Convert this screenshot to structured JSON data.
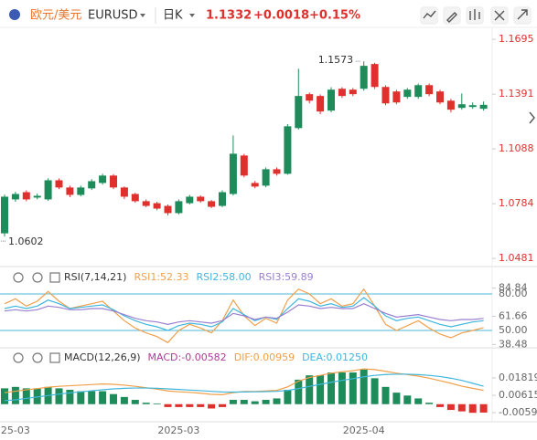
{
  "header": {
    "pair": "欧元/美元",
    "symbol": "EURUSD",
    "period": "日K",
    "price": "1.1332",
    "change": "+0.0018",
    "change_pct": "+0.15%"
  },
  "chart_data": [
    {
      "type": "candlestick",
      "up_color": "#1e8c5a",
      "down_color": "#e0302e",
      "open": [
        1.062,
        1.0808,
        1.0848,
        1.0818,
        1.0808,
        1.0914,
        1.0874,
        1.0833,
        1.0869,
        1.0899,
        1.094,
        1.0874,
        1.0838,
        1.0798,
        1.0787,
        1.0772,
        1.0732,
        1.0787,
        1.0823,
        1.0798,
        1.0772,
        1.0838,
        1.1051,
        1.0899,
        1.0884,
        1.0975,
        1.095,
        1.1203,
        1.1391,
        1.1381,
        1.13,
        1.1421,
        1.1416,
        1.1421,
        1.1558,
        1.1431,
        1.1406,
        1.1376,
        1.1376,
        1.1441,
        1.1406,
        1.1355,
        1.1315,
        1.132,
        1.131
      ],
      "high": [
        1.0835,
        1.085,
        1.0858,
        1.084,
        1.0925,
        1.0924,
        1.0884,
        1.0884,
        1.092,
        1.095,
        1.0948,
        1.088,
        1.0845,
        1.0808,
        1.0795,
        1.078,
        1.0808,
        1.0833,
        1.083,
        1.0805,
        1.0858,
        1.1162,
        1.106,
        1.091,
        1.0985,
        1.0985,
        1.1225,
        1.1532,
        1.14,
        1.139,
        1.143,
        1.143,
        1.1425,
        1.1573,
        1.1565,
        1.144,
        1.1415,
        1.1425,
        1.145,
        1.145,
        1.1415,
        1.1365,
        1.1395,
        1.1345,
        1.135
      ],
      "low": [
        1.0602,
        1.0795,
        1.0798,
        1.0808,
        1.08,
        1.0865,
        1.082,
        1.0825,
        1.086,
        1.089,
        1.0865,
        1.081,
        1.079,
        1.0765,
        1.0748,
        1.072,
        1.0725,
        1.078,
        1.079,
        1.076,
        1.0765,
        1.083,
        1.093,
        1.087,
        1.0875,
        1.094,
        1.0945,
        1.1195,
        1.134,
        1.128,
        1.129,
        1.137,
        1.138,
        1.141,
        1.142,
        1.133,
        1.1335,
        1.1365,
        1.1365,
        1.138,
        1.1335,
        1.129,
        1.1305,
        1.131,
        1.13
      ],
      "close": [
        1.0823,
        1.0838,
        1.0808,
        1.0828,
        1.0914,
        1.0874,
        1.0833,
        1.0874,
        1.0909,
        1.094,
        1.0874,
        1.0823,
        1.0798,
        1.0772,
        1.0757,
        1.0732,
        1.0798,
        1.0823,
        1.0798,
        1.0767,
        1.0848,
        1.1061,
        1.094,
        1.0879,
        1.0975,
        1.095,
        1.1213,
        1.1381,
        1.1355,
        1.1295,
        1.1416,
        1.1381,
        1.1391,
        1.1548,
        1.1431,
        1.134,
        1.1345,
        1.1416,
        1.1441,
        1.1391,
        1.1345,
        1.1305,
        1.1335,
        1.133,
        1.1332
      ],
      "ylim": [
        1.0446,
        1.1761
      ],
      "yticks": [
        1.1695,
        1.1391,
        1.1088,
        1.0784,
        1.0481
      ],
      "annotations": [
        {
          "text": "1.1573",
          "index": 33,
          "value": 1.1573
        },
        {
          "text": "1.0602",
          "index": 0,
          "value": 1.0602
        }
      ]
    },
    {
      "type": "line",
      "title": "RSI(7,14,21)",
      "ylim": [
        36.5,
        87.5
      ],
      "hlines": [
        {
          "value": 80,
          "label": "80.00"
        },
        {
          "value": 50,
          "label": "50.00"
        }
      ],
      "hline_color": "#4bb8d8",
      "yticks": [
        84.84,
        61.66,
        38.48
      ],
      "series": [
        {
          "name": "RSI1:52.33",
          "color": "#f0a04b",
          "values": [
            72,
            76,
            70,
            74,
            82,
            74,
            68,
            70,
            72,
            74,
            66,
            58,
            52,
            48,
            45,
            40,
            50,
            55,
            52,
            48,
            58,
            75,
            62,
            54,
            60,
            56,
            75,
            84,
            80,
            72,
            76,
            70,
            72,
            84,
            70,
            55,
            50,
            54,
            58,
            52,
            47,
            44,
            48,
            50,
            52.33
          ]
        },
        {
          "name": "RSI2:58.00",
          "color": "#3fb6dc",
          "values": [
            68,
            70,
            68,
            70,
            75,
            72,
            68,
            69,
            70,
            71,
            67,
            62,
            58,
            55,
            53,
            50,
            54,
            56,
            55,
            53,
            57,
            68,
            63,
            58,
            61,
            59,
            68,
            76,
            74,
            70,
            72,
            69,
            70,
            77,
            70,
            62,
            58,
            60,
            61,
            58,
            55,
            53,
            55,
            57,
            58.0
          ]
        },
        {
          "name": "RSI3:59.89",
          "color": "#9b7fd0",
          "values": [
            66,
            67,
            66,
            67,
            70,
            69,
            67,
            67,
            68,
            68,
            66,
            63,
            60,
            58,
            57,
            55,
            57,
            58,
            57,
            56,
            58,
            64,
            62,
            59,
            61,
            60,
            65,
            71,
            70,
            68,
            69,
            68,
            68,
            72,
            68,
            64,
            61,
            62,
            63,
            61,
            59,
            58,
            59,
            59,
            59.89
          ]
        }
      ]
    },
    {
      "type": "combo",
      "title": "MACD(12,26,9)",
      "ylim": [
        -0.0122,
        0.0366
      ],
      "yticks": [
        0.01819,
        0.00615,
        {
          "value": -0.0059,
          "label": "-0.00590"
        }
      ],
      "categories": [
        null,
        "25-03",
        null,
        null,
        null,
        null,
        null,
        null,
        null,
        null,
        null,
        null,
        null,
        null,
        null,
        null,
        "2025-03",
        null,
        null,
        null,
        null,
        null,
        null,
        null,
        null,
        null,
        null,
        null,
        null,
        null,
        null,
        null,
        null,
        "2025-04",
        null,
        null,
        null,
        null,
        null,
        null,
        null,
        null,
        null,
        null,
        null
      ],
      "series": [
        {
          "name": "MACD:-0.00582",
          "kind": "bar",
          "color": "#b03a9a",
          "up_color": "#1e8c5a",
          "down_color": "#e0302e",
          "values": [
            0.011,
            0.012,
            0.011,
            0.011,
            0.012,
            0.011,
            0.01,
            0.009,
            0.009,
            0.009,
            0.007,
            0.005,
            0.003,
            0.001,
            0.0005,
            -0.002,
            -0.002,
            -0.002,
            -0.002,
            -0.003,
            -0.002,
            0.003,
            0.003,
            0.002,
            0.003,
            0.004,
            0.01,
            0.017,
            0.02,
            0.02,
            0.022,
            0.022,
            0.022,
            0.024,
            0.018,
            0.012,
            0.008,
            0.006,
            0.004,
            0.001,
            -0.002,
            -0.004,
            -0.005,
            -0.006,
            -0.00582
          ]
        },
        {
          "name": "DIF:0.00959",
          "kind": "line",
          "color": "#f0a04b",
          "values": [
            0.008,
            0.009,
            0.01,
            0.0108,
            0.0118,
            0.0124,
            0.0128,
            0.0132,
            0.0136,
            0.014,
            0.0138,
            0.0132,
            0.0124,
            0.0114,
            0.0104,
            0.0092,
            0.0086,
            0.0082,
            0.0076,
            0.0068,
            0.0066,
            0.008,
            0.0088,
            0.0088,
            0.0092,
            0.0096,
            0.012,
            0.016,
            0.0185,
            0.02,
            0.0215,
            0.0225,
            0.0232,
            0.0245,
            0.024,
            0.0228,
            0.0215,
            0.0205,
            0.0195,
            0.018,
            0.0163,
            0.0145,
            0.0125,
            0.011,
            0.00959
          ]
        },
        {
          "name": "DEA:0.01250",
          "kind": "line",
          "color": "#3fb6dc",
          "values": [
            0.0025,
            0.003,
            0.004,
            0.005,
            0.006,
            0.007,
            0.0078,
            0.0086,
            0.0093,
            0.01,
            0.0106,
            0.011,
            0.0112,
            0.0112,
            0.011,
            0.0106,
            0.0102,
            0.0098,
            0.0094,
            0.0089,
            0.0085,
            0.0084,
            0.0085,
            0.0086,
            0.0087,
            0.0089,
            0.0095,
            0.0108,
            0.0123,
            0.0138,
            0.0152,
            0.0165,
            0.0177,
            0.019,
            0.02,
            0.0206,
            0.0208,
            0.0208,
            0.0205,
            0.02,
            0.0192,
            0.018,
            0.0165,
            0.0145,
            0.0125
          ]
        }
      ]
    }
  ]
}
